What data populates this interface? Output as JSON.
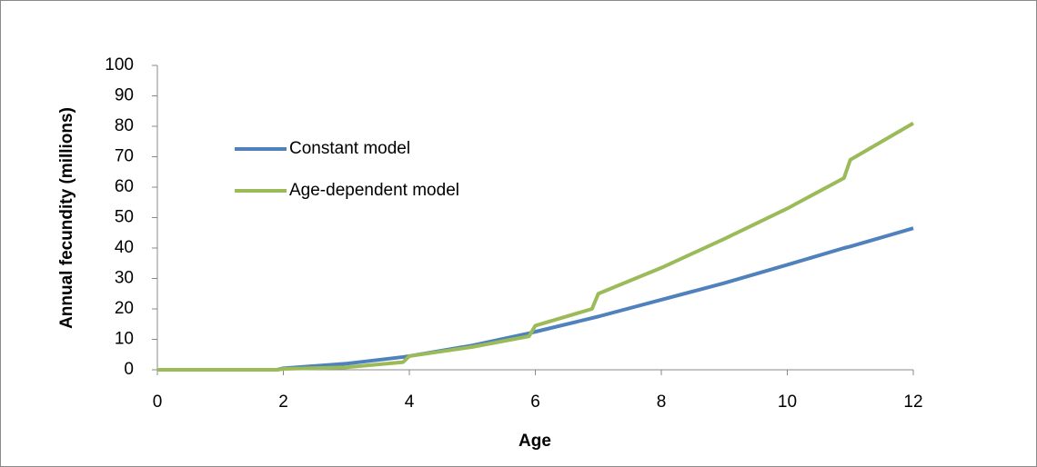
{
  "chart_data": {
    "type": "line",
    "x_label": "Age",
    "y_label": "Annual fecundity (millions)",
    "x": [
      0,
      1,
      1.9,
      2,
      3,
      3.9,
      4,
      5,
      5.9,
      6,
      6.9,
      7,
      8,
      9,
      10,
      10.9,
      11,
      12
    ],
    "series": [
      {
        "name": "Constant model",
        "color": "#4f81bd",
        "values": [
          0,
          0,
          0,
          0.5,
          2,
          4.2,
          4.5,
          8,
          12,
          12.5,
          17,
          17.5,
          23,
          28.5,
          34.5,
          40,
          40.5,
          46.5
        ]
      },
      {
        "name": "Age-dependent model",
        "color": "#9bbb59",
        "values": [
          0,
          0,
          0,
          0.3,
          0.8,
          2.5,
          4.5,
          7.5,
          11,
          14.5,
          20,
          25,
          33.5,
          43,
          53,
          63,
          69,
          81
        ]
      }
    ],
    "xlim": [
      0,
      12
    ],
    "xticks": [
      0,
      2,
      4,
      6,
      8,
      10,
      12
    ],
    "ylim": [
      0,
      100
    ],
    "yticks": [
      0,
      10,
      20,
      30,
      40,
      50,
      60,
      70,
      80,
      90,
      100
    ],
    "grid": false
  }
}
